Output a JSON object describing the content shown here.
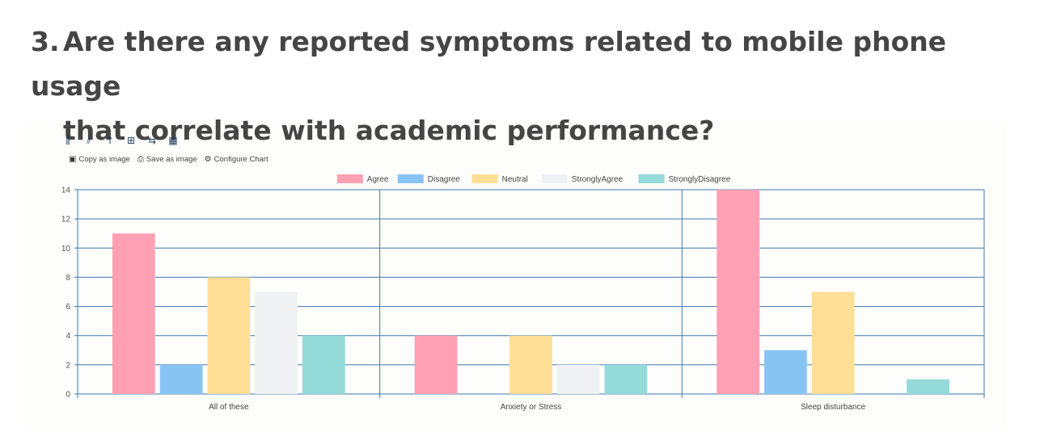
{
  "question": {
    "number": "3.",
    "line1": "Are there any reported symptoms related to mobile phone usage",
    "line2": "that correlate with academic performance?"
  },
  "toolbar": {
    "buttons": [
      {
        "icon": "bar-chart-icon",
        "glyph": "⫼"
      },
      {
        "icon": "stacked-bar-icon",
        "glyph": "⫽"
      },
      {
        "icon": "line-chart-icon",
        "glyph": "↑"
      },
      {
        "icon": "column-chart-icon",
        "glyph": "⊞"
      },
      {
        "icon": "switch-axis-icon",
        "glyph": "⇆"
      },
      {
        "icon": "table-icon",
        "glyph": "▦"
      }
    ],
    "copy_label": "Copy as image",
    "save_label": "Save as image",
    "configure_label": "Configure Chart"
  },
  "chart_data": {
    "type": "bar",
    "categories": [
      "All of these",
      "Anxiety or Stress",
      "Sleep disturbance"
    ],
    "series": [
      {
        "name": "Agree",
        "values": [
          11,
          4,
          14
        ],
        "color": "#ffa0b4"
      },
      {
        "name": "Disagree",
        "values": [
          2,
          0,
          3
        ],
        "color": "#88c4f3"
      },
      {
        "name": "Neutral",
        "values": [
          8,
          4,
          7
        ],
        "color": "#ffde96"
      },
      {
        "name": "StronglyAgree",
        "values": [
          7,
          2,
          0
        ],
        "color": "#eff1f3"
      },
      {
        "name": "StronglyDisagree",
        "values": [
          4,
          2,
          1
        ],
        "color": "#94dad9"
      }
    ],
    "ylim": [
      0,
      14
    ],
    "yticks": [
      0,
      2,
      4,
      6,
      8,
      10,
      12,
      14
    ],
    "legend": "top-center",
    "grid": true,
    "grid_color": "#3e7aab"
  }
}
